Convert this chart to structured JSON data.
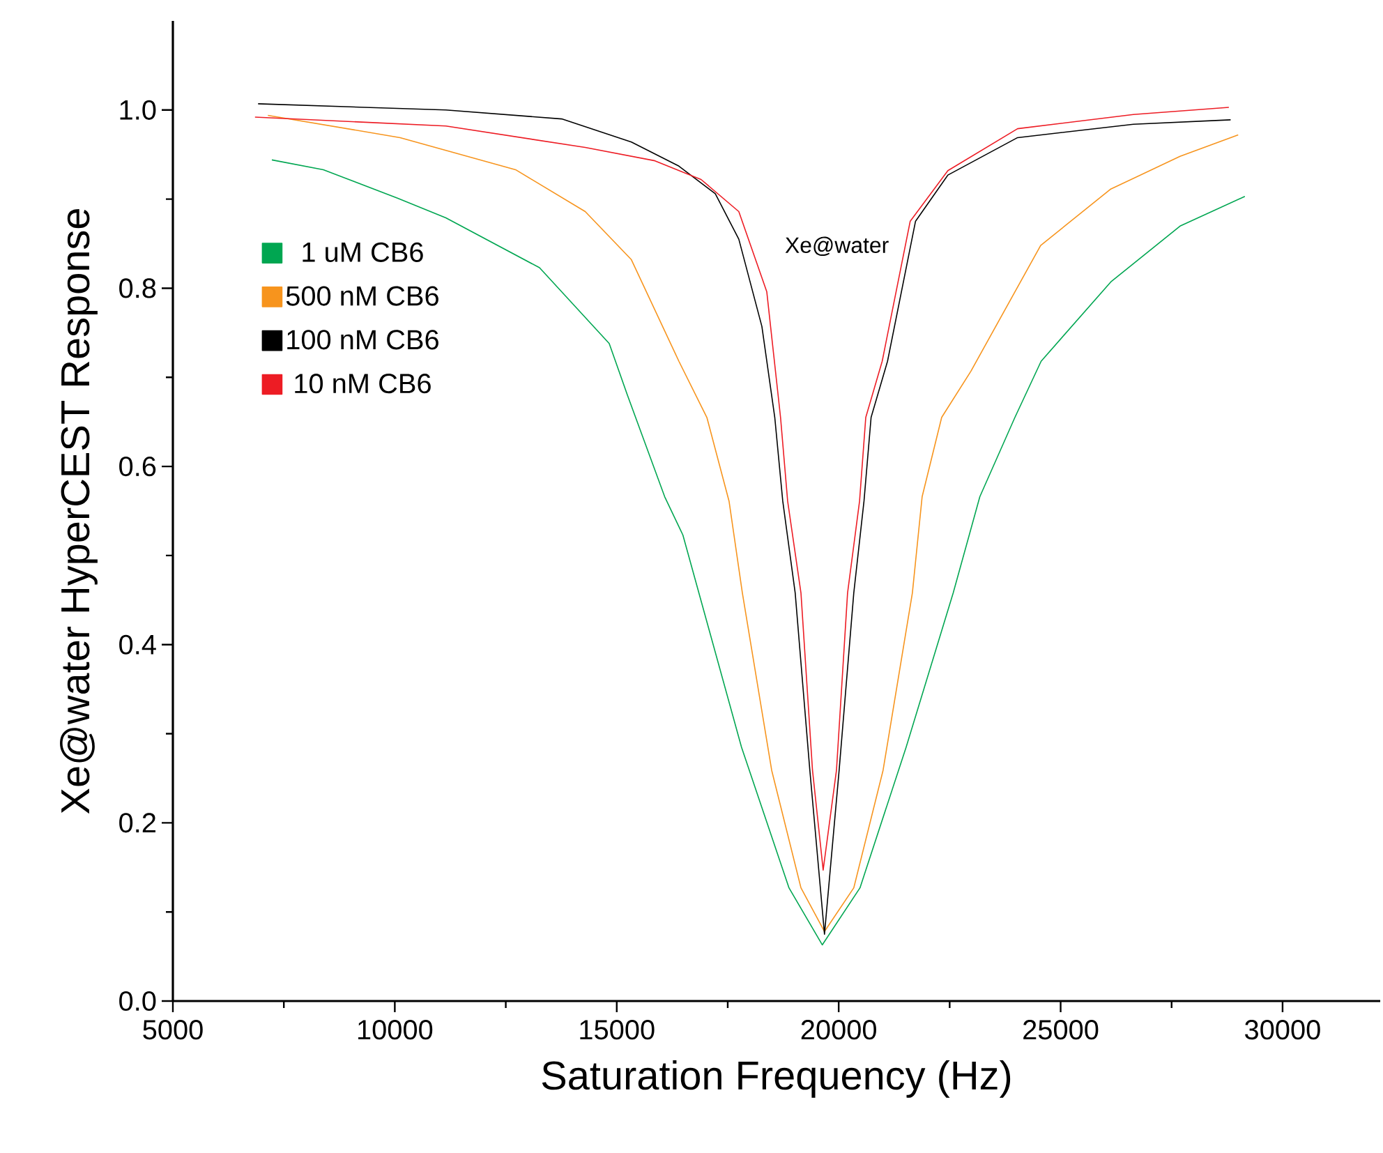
{
  "chart_data": {
    "type": "line",
    "xlabel": "Saturation Frequency (Hz)",
    "ylabel": "Xe@water HyperCEST Response",
    "annotations": [
      "Xe@water"
    ],
    "xlim": [
      5000,
      32200
    ],
    "ylim": [
      0,
      1.1
    ],
    "xticks": [
      5000,
      10000,
      15000,
      20000,
      25000,
      30000
    ],
    "yticks": [
      {
        "value": 0,
        "label": "0.0"
      },
      {
        "value": 0.2,
        "label": "0.2"
      },
      {
        "value": 0.4,
        "label": "0.4"
      },
      {
        "value": 0.6,
        "label": "0.6"
      },
      {
        "value": 0.8,
        "label": "0.8"
      },
      {
        "value": 1.0,
        "label": "1.0"
      }
    ],
    "grid": false,
    "legend": "left",
    "marker": "none",
    "line_style": "solid",
    "series": [
      {
        "name": "1 uM CB6",
        "color": "#00a651",
        "x": [
          7230,
          8390,
          10060,
          11150,
          13260,
          14830,
          15240,
          16080,
          16490,
          17810,
          18880,
          19630,
          20480,
          21520,
          22580,
          23180,
          23970,
          24560,
          26130,
          27700,
          29150
        ],
        "values": [
          0.944,
          0.933,
          0.901,
          0.879,
          0.823,
          0.738,
          0.68,
          0.566,
          0.523,
          0.285,
          0.127,
          0.063,
          0.127,
          0.285,
          0.458,
          0.566,
          0.655,
          0.718,
          0.807,
          0.87,
          0.903
        ]
      },
      {
        "name": "500 nM CB6",
        "color": "#f7941d",
        "x": [
          7140,
          10120,
          12720,
          14290,
          15330,
          16400,
          17030,
          17530,
          17830,
          18490,
          19150,
          19680,
          20340,
          21000,
          21660,
          21880,
          22320,
          22980,
          24550,
          26120,
          27690,
          29000
        ],
        "values": [
          0.994,
          0.969,
          0.933,
          0.886,
          0.832,
          0.718,
          0.655,
          0.561,
          0.458,
          0.259,
          0.127,
          0.078,
          0.127,
          0.259,
          0.458,
          0.566,
          0.655,
          0.707,
          0.848,
          0.911,
          0.948,
          0.972
        ]
      },
      {
        "name": "100 nM CB6",
        "color": "#000000",
        "x": [
          6920,
          11150,
          13760,
          15330,
          16400,
          17220,
          17750,
          18270,
          18560,
          18740,
          19020,
          19350,
          19680,
          20010,
          20340,
          20570,
          20730,
          21100,
          21730,
          22460,
          24030,
          26640,
          28830
        ],
        "values": [
          1.007,
          1.0,
          0.99,
          0.964,
          0.937,
          0.906,
          0.855,
          0.757,
          0.655,
          0.561,
          0.458,
          0.259,
          0.075,
          0.259,
          0.458,
          0.561,
          0.655,
          0.718,
          0.875,
          0.927,
          0.969,
          0.984,
          0.989
        ]
      },
      {
        "name": "10 nM CB6",
        "color": "#ed1c24",
        "x": [
          6850,
          11150,
          14290,
          15860,
          16900,
          17750,
          18380,
          18690,
          18850,
          19150,
          19410,
          19650,
          19950,
          20200,
          20470,
          20610,
          20980,
          21610,
          22460,
          24030,
          26640,
          28790
        ],
        "values": [
          0.992,
          0.982,
          0.958,
          0.943,
          0.922,
          0.886,
          0.796,
          0.655,
          0.561,
          0.458,
          0.259,
          0.147,
          0.259,
          0.458,
          0.561,
          0.655,
          0.718,
          0.875,
          0.932,
          0.979,
          0.995,
          1.003
        ]
      }
    ]
  }
}
